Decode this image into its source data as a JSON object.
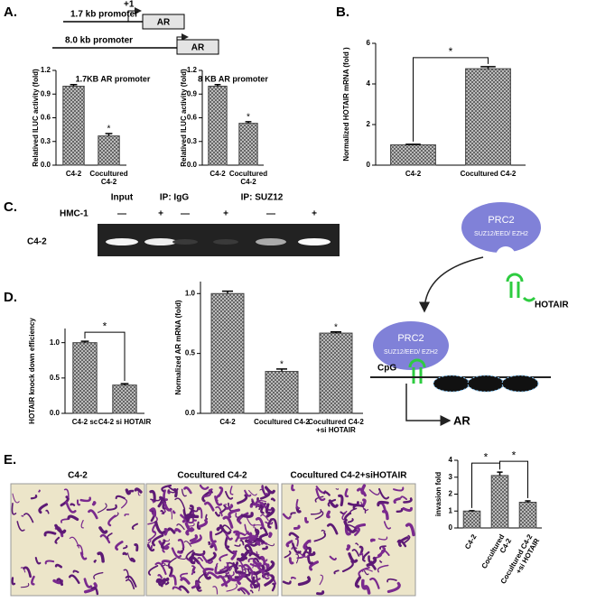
{
  "figure": {
    "panels": [
      "A.",
      "B.",
      "C.",
      "D.",
      "E."
    ],
    "promoter_diagram": {
      "short": "1.7 kb promoter",
      "start": "+1",
      "gene_short": "AR",
      "long": "8.0 kb promoter",
      "gene_long": "AR"
    },
    "gel": {
      "groups": [
        "Input",
        "IP:  IgG",
        "IP: SUZ12"
      ],
      "treatment": "HMC-1",
      "signs": [
        "—",
        "+",
        "—",
        "+",
        "—",
        "+"
      ],
      "cell_line": "C4-2"
    },
    "model": {
      "complex_top": "PRC2",
      "subunits_top": "SUZ12/EED/ EZH2",
      "rna": "HOTAIR",
      "complex_bottom": "PRC2",
      "subunits_bottom": "SUZ12/EED/ EZH2",
      "cpg": "CpG",
      "gene": "AR"
    },
    "micrographs": {
      "titles": [
        "C4-2",
        "Cocultured C4-2",
        "Cocultured C4-2+siHOTAIR"
      ]
    }
  },
  "chart_data": [
    {
      "type": "bar",
      "title": "1.7KB AR promoter",
      "y_label": "Relatived ILUC activity (fold)",
      "categories": [
        "C4-2",
        "Cocultured C4-2"
      ],
      "values": [
        1.0,
        0.37
      ],
      "errors": [
        0.02,
        0.03
      ],
      "ylim": [
        0,
        1.2
      ],
      "yticks": [
        {
          "value": 0,
          "label": "0.0"
        },
        0.3,
        0.6,
        0.9,
        1.2
      ],
      "markers": [
        {
          "label": "*",
          "index": 1
        }
      ]
    },
    {
      "type": "bar",
      "title": "8 KB AR promoter",
      "y_label": "Relatived ILUC activity (fold)",
      "categories": [
        "C4-2",
        "Cocultured C4-2"
      ],
      "values": [
        1.0,
        0.53
      ],
      "errors": [
        0.02,
        0.02
      ],
      "ylim": [
        0,
        1.2
      ],
      "yticks": [
        {
          "value": 0,
          "label": "0.0"
        },
        0.3,
        0.6,
        0.9,
        1.2
      ],
      "markers": [
        {
          "label": "*",
          "index": 1
        }
      ]
    },
    {
      "type": "bar",
      "y_label": "Normalized HOTAIR mRNA (fold )",
      "categories": [
        "C4-2",
        "Cocultured C4-2"
      ],
      "values": [
        1.0,
        4.75
      ],
      "errors": [
        0.03,
        0.1
      ],
      "ylim": [
        0,
        6
      ],
      "yticks": [
        0,
        2,
        4,
        6
      ],
      "brackets": [
        {
          "label": "*",
          "from": 0,
          "to": 1
        }
      ]
    },
    {
      "type": "bar",
      "y_label": "HOTAIR knock down efficiency",
      "categories": [
        "C4-2 sc",
        "C4-2 si HOTAIR"
      ],
      "values": [
        1.0,
        0.4
      ],
      "errors": [
        0.02,
        0.02
      ],
      "ylim": [
        0,
        1.2
      ],
      "yticks": [
        {
          "value": 0,
          "label": "0.0"
        },
        0.5,
        {
          "value": 1,
          "label": "1.0"
        }
      ],
      "brackets": [
        {
          "label": "*",
          "from": 0,
          "to": 1
        }
      ]
    },
    {
      "type": "bar",
      "y_label": "Normalized AR mRNA (fold)",
      "categories": [
        "C4-2",
        "Cocultured C4-2",
        "Cocultured C4-2 +si HOTAIR"
      ],
      "values": [
        1.0,
        0.35,
        0.67
      ],
      "errors": [
        0.02,
        0.02,
        0.01
      ],
      "ylim": [
        0,
        1.1
      ],
      "yticks": [
        {
          "value": 0,
          "label": "0.0"
        },
        0.5,
        {
          "value": 1,
          "label": "1.0"
        }
      ],
      "markers": [
        {
          "label": "*",
          "index": 1
        },
        {
          "label": "*",
          "index": 2
        }
      ]
    },
    {
      "type": "bar",
      "y_label": "invasion fold",
      "categories": [
        "C4-2",
        "Cocultured C4-2",
        "Cocultured C4-2 +si HOTAIR"
      ],
      "values": [
        1.0,
        3.1,
        1.52
      ],
      "errors": [
        0.02,
        0.2,
        0.08
      ],
      "ylim": [
        0,
        4
      ],
      "yticks": [
        0,
        1,
        2,
        3,
        4
      ],
      "brackets": [
        {
          "label": "*",
          "from": 0,
          "to": 1
        },
        {
          "label": "*",
          "from": 1,
          "to": 2
        }
      ]
    }
  ]
}
